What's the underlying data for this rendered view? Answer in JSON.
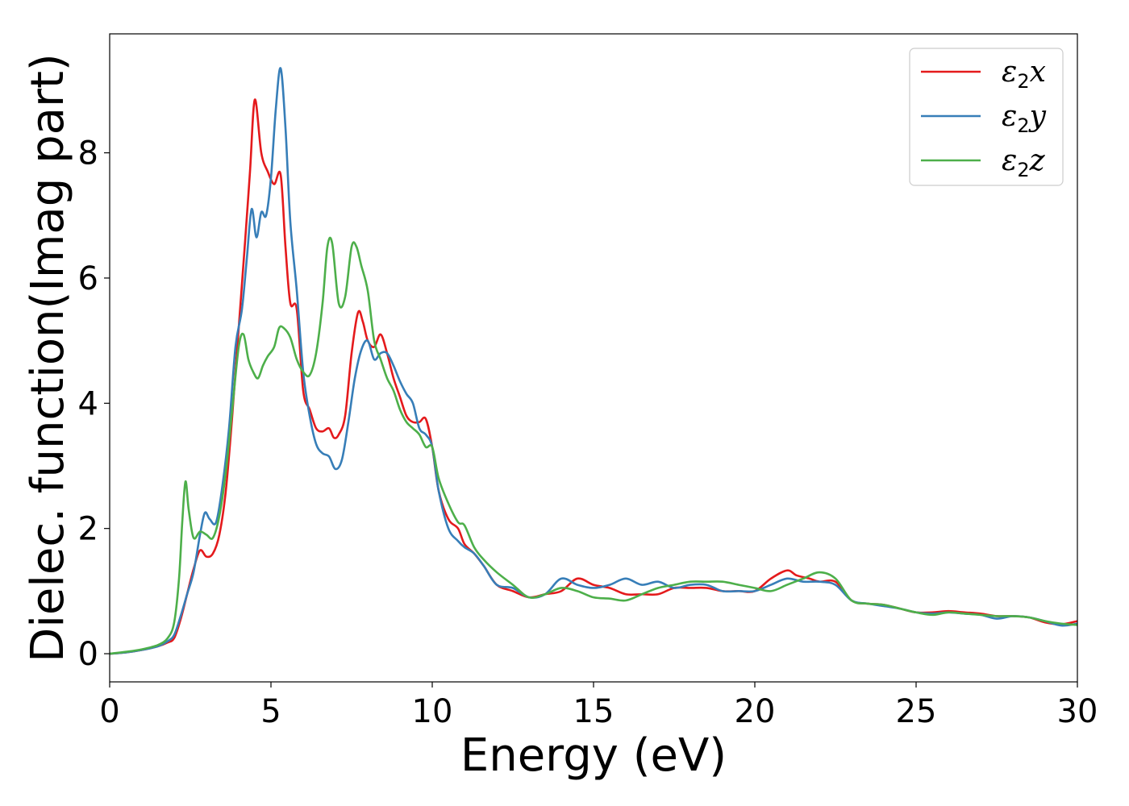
{
  "chart_data": {
    "type": "line",
    "title": "",
    "xlabel": "Energy (eV)",
    "ylabel": "Dielec. function(Imag part)",
    "xlim": [
      0,
      30
    ],
    "ylim": [
      -0.45,
      9.9
    ],
    "xticks": [
      0,
      5,
      10,
      15,
      20,
      25,
      30
    ],
    "yticks": [
      0,
      2,
      4,
      6,
      8
    ],
    "grid": false,
    "legend_position": "top-right",
    "series": [
      {
        "name": "ε2x",
        "legend_base": "ε",
        "legend_sub": "2",
        "legend_suffix": "x",
        "color": "#e41a1c",
        "x": [
          0,
          0.5,
          1,
          1.5,
          1.8,
          2,
          2.2,
          2.4,
          2.6,
          2.8,
          3,
          3.2,
          3.4,
          3.6,
          3.8,
          4,
          4.2,
          4.35,
          4.5,
          4.7,
          4.9,
          5.1,
          5.3,
          5.45,
          5.6,
          5.8,
          6,
          6.2,
          6.4,
          6.6,
          6.8,
          6.95,
          7.1,
          7.3,
          7.5,
          7.7,
          7.85,
          8,
          8.2,
          8.4,
          8.6,
          8.8,
          9,
          9.2,
          9.4,
          9.6,
          9.8,
          10,
          10.2,
          10.5,
          10.8,
          11,
          11.3,
          11.6,
          12,
          12.5,
          13,
          13.5,
          14,
          14.5,
          15,
          15.5,
          16,
          16.5,
          17,
          17.5,
          18,
          18.5,
          19,
          19.5,
          20,
          20.5,
          21,
          21.3,
          21.7,
          22,
          22.5,
          23,
          23.5,
          24,
          24.5,
          25,
          25.5,
          26,
          26.5,
          27,
          27.5,
          28,
          28.5,
          29,
          29.5,
          30
        ],
        "y": [
          0,
          0.02,
          0.06,
          0.12,
          0.18,
          0.25,
          0.55,
          0.95,
          1.35,
          1.65,
          1.55,
          1.6,
          1.9,
          2.6,
          3.8,
          5.2,
          6.6,
          7.7,
          8.85,
          8.0,
          7.7,
          7.5,
          7.65,
          6.5,
          5.6,
          5.5,
          4.2,
          3.9,
          3.6,
          3.55,
          3.6,
          3.45,
          3.5,
          3.8,
          4.8,
          5.45,
          5.3,
          5.0,
          4.9,
          5.1,
          4.8,
          4.4,
          4.1,
          3.8,
          3.7,
          3.7,
          3.75,
          3.3,
          2.6,
          2.15,
          2.0,
          1.75,
          1.6,
          1.4,
          1.1,
          1.0,
          0.9,
          0.95,
          1.0,
          1.2,
          1.1,
          1.05,
          0.95,
          0.95,
          0.95,
          1.05,
          1.05,
          1.05,
          1.0,
          1.0,
          1.0,
          1.2,
          1.33,
          1.25,
          1.2,
          1.15,
          1.15,
          0.85,
          0.8,
          0.78,
          0.72,
          0.66,
          0.66,
          0.68,
          0.66,
          0.64,
          0.6,
          0.6,
          0.58,
          0.5,
          0.47,
          0.52
        ]
      },
      {
        "name": "ε2y",
        "legend_base": "ε",
        "legend_sub": "2",
        "legend_suffix": "y",
        "color": "#377eb8",
        "x": [
          0,
          0.5,
          1,
          1.5,
          1.8,
          2,
          2.2,
          2.4,
          2.6,
          2.8,
          2.95,
          3.1,
          3.3,
          3.5,
          3.7,
          3.9,
          4.1,
          4.25,
          4.4,
          4.55,
          4.7,
          4.85,
          5,
          5.15,
          5.3,
          5.45,
          5.6,
          5.8,
          6,
          6.2,
          6.4,
          6.6,
          6.8,
          7,
          7.2,
          7.4,
          7.6,
          7.8,
          8,
          8.2,
          8.4,
          8.6,
          8.8,
          9,
          9.2,
          9.4,
          9.6,
          9.8,
          10,
          10.2,
          10.5,
          10.8,
          11,
          11.3,
          11.6,
          12,
          12.5,
          13,
          13.5,
          14,
          14.5,
          15,
          15.5,
          16,
          16.5,
          17,
          17.5,
          18,
          18.5,
          19,
          19.5,
          20,
          20.5,
          21,
          21.5,
          22,
          22.5,
          23,
          23.5,
          24,
          24.5,
          25,
          25.5,
          26,
          26.5,
          27,
          27.5,
          28,
          28.5,
          29,
          29.5,
          30
        ],
        "y": [
          0,
          0.02,
          0.06,
          0.12,
          0.2,
          0.3,
          0.6,
          0.95,
          1.3,
          1.9,
          2.25,
          2.15,
          2.1,
          2.7,
          3.6,
          4.9,
          5.5,
          6.3,
          7.1,
          6.65,
          7.05,
          7.0,
          7.6,
          8.7,
          9.35,
          8.4,
          6.9,
          5.8,
          4.5,
          3.8,
          3.35,
          3.2,
          3.15,
          2.95,
          3.1,
          3.7,
          4.4,
          4.85,
          5.0,
          4.7,
          4.8,
          4.8,
          4.6,
          4.35,
          4.15,
          4.0,
          3.6,
          3.5,
          3.3,
          2.6,
          2.0,
          1.8,
          1.7,
          1.6,
          1.4,
          1.1,
          1.05,
          0.9,
          0.95,
          1.2,
          1.1,
          1.05,
          1.1,
          1.2,
          1.1,
          1.15,
          1.05,
          1.1,
          1.1,
          1.0,
          1.0,
          1.0,
          1.1,
          1.2,
          1.15,
          1.15,
          1.1,
          0.85,
          0.8,
          0.76,
          0.72,
          0.66,
          0.64,
          0.66,
          0.64,
          0.62,
          0.56,
          0.6,
          0.58,
          0.52,
          0.45,
          0.48
        ]
      },
      {
        "name": "ε2z",
        "legend_base": "ε",
        "legend_sub": "2",
        "legend_suffix": "z",
        "color": "#4daf4a",
        "x": [
          0,
          0.5,
          1,
          1.5,
          1.8,
          2,
          2.15,
          2.25,
          2.35,
          2.45,
          2.6,
          2.8,
          3,
          3.2,
          3.4,
          3.6,
          3.8,
          4,
          4.15,
          4.3,
          4.45,
          4.6,
          4.75,
          4.9,
          5.1,
          5.25,
          5.4,
          5.6,
          5.8,
          6,
          6.2,
          6.4,
          6.6,
          6.75,
          6.9,
          7.1,
          7.3,
          7.5,
          7.65,
          7.8,
          8,
          8.2,
          8.4,
          8.6,
          8.8,
          9,
          9.2,
          9.4,
          9.6,
          9.8,
          10,
          10.2,
          10.5,
          10.8,
          11,
          11.3,
          11.6,
          12,
          12.5,
          13,
          13.5,
          14,
          14.5,
          15,
          15.5,
          16,
          16.5,
          17,
          17.5,
          18,
          18.5,
          19,
          19.5,
          20,
          20.5,
          21,
          21.5,
          22,
          22.5,
          23,
          23.5,
          24,
          24.5,
          25,
          25.5,
          26,
          26.5,
          27,
          27.5,
          28,
          28.5,
          29,
          29.5,
          30
        ],
        "y": [
          0,
          0.03,
          0.07,
          0.14,
          0.25,
          0.5,
          1.2,
          2.1,
          2.75,
          2.3,
          1.85,
          1.95,
          1.9,
          1.85,
          2.2,
          2.9,
          3.9,
          4.9,
          5.1,
          4.7,
          4.5,
          4.4,
          4.6,
          4.75,
          4.9,
          5.2,
          5.2,
          5.05,
          4.7,
          4.5,
          4.45,
          4.8,
          5.6,
          6.5,
          6.55,
          5.6,
          5.7,
          6.5,
          6.5,
          6.2,
          5.8,
          5.0,
          4.7,
          4.4,
          4.2,
          3.9,
          3.7,
          3.6,
          3.5,
          3.3,
          3.3,
          2.8,
          2.4,
          2.1,
          2.05,
          1.7,
          1.5,
          1.3,
          1.1,
          0.9,
          0.95,
          1.05,
          1.0,
          0.9,
          0.88,
          0.85,
          0.95,
          1.05,
          1.1,
          1.15,
          1.15,
          1.15,
          1.1,
          1.05,
          1.0,
          1.1,
          1.2,
          1.3,
          1.2,
          0.85,
          0.8,
          0.78,
          0.72,
          0.66,
          0.62,
          0.66,
          0.64,
          0.62,
          0.6,
          0.6,
          0.58,
          0.52,
          0.48,
          0.46
        ]
      }
    ]
  }
}
